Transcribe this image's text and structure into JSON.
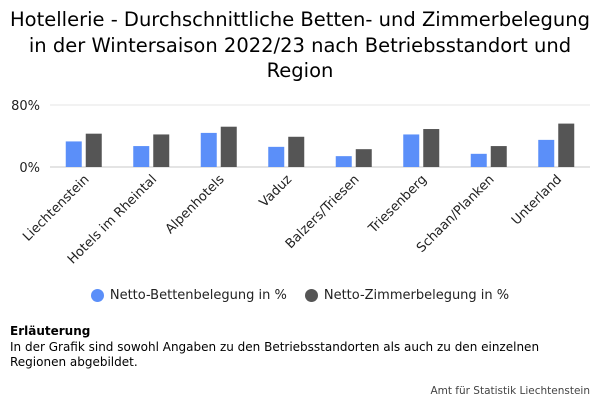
{
  "chart_data": {
    "type": "bar",
    "title": "Hotellerie - Durchschnittliche Betten- und Zimmerbelegung in der Wintersaison 2022/23 nach Betriebsstandort und Region",
    "xlabel": "",
    "ylabel": "",
    "categories": [
      "Liechtenstein",
      "Hotels im Rheintal",
      "Alpenhotels",
      "Vaduz",
      "Balzers/Triesen",
      "Triesenberg",
      "Schaan/Planken",
      "Unterland"
    ],
    "series": [
      {
        "name": "Netto-Bettenbelegung in %",
        "values": [
          33,
          27,
          44,
          26,
          14,
          42,
          17,
          35
        ],
        "color": "#5b8ff9"
      },
      {
        "name": "Netto-Zimmerbelegung in %",
        "values": [
          43,
          42,
          52,
          39,
          23,
          49,
          27,
          56
        ],
        "color": "#555555"
      }
    ],
    "ylim": [
      0,
      80
    ],
    "yticks": [
      {
        "value": 0,
        "label": "0%"
      },
      {
        "value": 80,
        "label": "80%"
      }
    ],
    "grid": true,
    "legend": "bottom"
  },
  "note": {
    "heading": "Erläuterung",
    "text": "In der Grafik sind sowohl Angaben zu den Betriebsstandorten als auch zu den einzelnen Regionen abgebildet."
  },
  "source": "Amt für Statistik Liechtenstein"
}
